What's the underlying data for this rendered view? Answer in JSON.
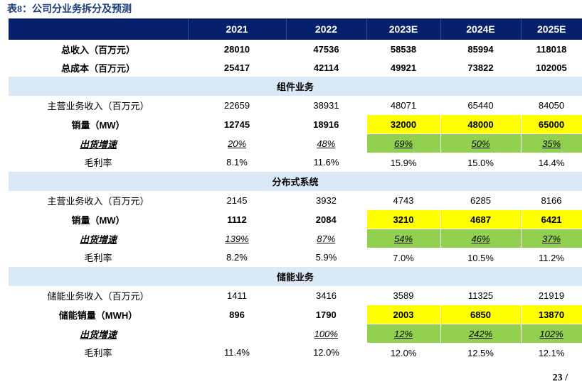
{
  "caption": "表8：公司分业务拆分及预测",
  "headers": [
    "",
    "2021",
    "2022",
    "2023E",
    "2024E",
    "2025E"
  ],
  "rows": [
    {
      "type": "row",
      "style": "bold",
      "cells": [
        "总收入（百万元）",
        "28010",
        "47536",
        "58538",
        "85994",
        "118018"
      ]
    },
    {
      "type": "row",
      "style": "bold",
      "cells": [
        "总成本（百万元）",
        "25417",
        "42114",
        "49921",
        "73822",
        "102005"
      ]
    },
    {
      "type": "section",
      "label": "组件业务"
    },
    {
      "type": "row",
      "style": "normal",
      "cells": [
        "主营业务收入（百万元）",
        "22659",
        "38931",
        "48071",
        "65440",
        "84050"
      ]
    },
    {
      "type": "row",
      "style": "bold",
      "hl": "yellow",
      "cells": [
        "销量（MW）",
        "12745",
        "18916",
        "32000",
        "48000",
        "65000"
      ]
    },
    {
      "type": "row",
      "style": "italic",
      "hl": "green",
      "cells": [
        "出货增速",
        "20%",
        "48%",
        "69%",
        "50%",
        "35%"
      ]
    },
    {
      "type": "row",
      "style": "normal",
      "cells": [
        "毛利率",
        "8.1%",
        "11.6%",
        "15.9%",
        "15.0%",
        "14.4%"
      ]
    },
    {
      "type": "section",
      "label": "分布式系统"
    },
    {
      "type": "row",
      "style": "normal",
      "cells": [
        "主营业务收入（百万元）",
        "2145",
        "3932",
        "4743",
        "6285",
        "8166"
      ]
    },
    {
      "type": "row",
      "style": "bold",
      "hl": "yellow",
      "cells": [
        "销量（MW）",
        "1112",
        "2084",
        "3210",
        "4687",
        "6421"
      ]
    },
    {
      "type": "row",
      "style": "italic",
      "hl": "green",
      "cells": [
        "出货增速",
        "139%",
        "87%",
        "54%",
        "46%",
        "37%"
      ]
    },
    {
      "type": "row",
      "style": "normal",
      "cells": [
        "毛利率",
        "8.2%",
        "5.9%",
        "7.0%",
        "10.5%",
        "11.2%"
      ]
    },
    {
      "type": "section",
      "label": "储能业务"
    },
    {
      "type": "row",
      "style": "normal",
      "cells": [
        "储能业务收入（百万元）",
        "1411",
        "3416",
        "3589",
        "11325",
        "21919"
      ]
    },
    {
      "type": "row",
      "style": "bold",
      "hl": "yellow",
      "cells": [
        "储能销量（MWH）",
        "896",
        "1790",
        "2003",
        "6850",
        "13870"
      ]
    },
    {
      "type": "row",
      "style": "italic",
      "hl": "green",
      "cells": [
        "出货增速",
        "",
        "100%",
        "12%",
        "242%",
        "102%"
      ]
    },
    {
      "type": "row",
      "style": "normal",
      "cells": [
        "毛利率",
        "11.4%",
        "12.0%",
        "12.0%",
        "12.5%",
        "12.1%"
      ]
    }
  ],
  "page_number": "23 /"
}
